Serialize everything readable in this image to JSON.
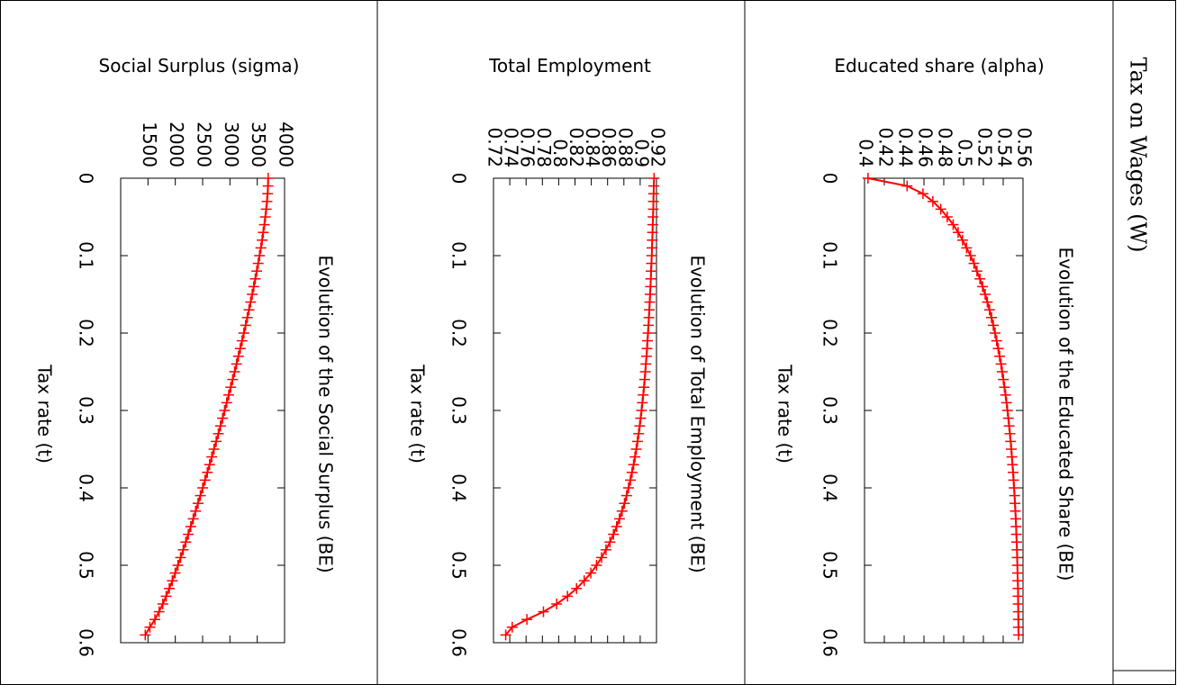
{
  "header": "Tax on Wages (W)",
  "chart_data": [
    {
      "type": "line",
      "column_label": "Educated share (alpha)",
      "title": "Evolution of the Educated Share (BE)",
      "xlabel": "Tax rate (t)",
      "ylabel": "",
      "xlim": [
        0,
        0.6
      ],
      "ylim": [
        0.4,
        0.56
      ],
      "xticks": [
        "0",
        "0.1",
        "0.2",
        "0.3",
        "0.4",
        "0.5",
        "0.6"
      ],
      "yticks": [
        "0.4",
        "0.42",
        "0.44",
        "0.46",
        "0.48",
        "0.5",
        "0.52",
        "0.54",
        "0.56"
      ],
      "color": "#ff0000",
      "marker": "plus",
      "x": [
        0,
        0.01,
        0.02,
        0.03,
        0.04,
        0.05,
        0.06,
        0.07,
        0.08,
        0.09,
        0.1,
        0.11,
        0.12,
        0.13,
        0.14,
        0.15,
        0.16,
        0.17,
        0.18,
        0.19,
        0.2,
        0.21,
        0.22,
        0.23,
        0.24,
        0.25,
        0.26,
        0.27,
        0.28,
        0.29,
        0.3,
        0.31,
        0.32,
        0.33,
        0.34,
        0.35,
        0.36,
        0.37,
        0.38,
        0.39,
        0.4,
        0.41,
        0.42,
        0.43,
        0.44,
        0.45,
        0.46,
        0.47,
        0.48,
        0.49,
        0.5,
        0.51,
        0.52,
        0.53,
        0.54,
        0.55,
        0.56,
        0.57,
        0.58,
        0.59
      ],
      "y": [
        0.4035,
        0.443,
        0.459,
        0.469,
        0.477,
        0.4835,
        0.4895,
        0.4945,
        0.499,
        0.503,
        0.507,
        0.5105,
        0.5135,
        0.5165,
        0.5192,
        0.5218,
        0.524,
        0.5262,
        0.5282,
        0.53,
        0.5318,
        0.5334,
        0.535,
        0.5364,
        0.5378,
        0.539,
        0.5402,
        0.5413,
        0.5424,
        0.5434,
        0.5443,
        0.5452,
        0.546,
        0.5468,
        0.5475,
        0.5482,
        0.5488,
        0.5494,
        0.55,
        0.5505,
        0.551,
        0.5515,
        0.5519,
        0.5523,
        0.5527,
        0.553,
        0.5533,
        0.5536,
        0.5539,
        0.5541,
        0.5543,
        0.5545,
        0.5547,
        0.5549,
        0.555,
        0.5551,
        0.5552,
        0.5553,
        0.5554,
        0.5555
      ]
    },
    {
      "type": "line",
      "column_label": "Total Employment",
      "title": "Evolution of Total Employment (BE)",
      "xlabel": "Tax rate (t)",
      "ylabel": "",
      "xlim": [
        0,
        0.6
      ],
      "ylim": [
        0.72,
        0.92
      ],
      "xticks": [
        "0",
        "0.1",
        "0.2",
        "0.3",
        "0.4",
        "0.5",
        "0.6"
      ],
      "yticks": [
        "0.72",
        "0.74",
        "0.76",
        "0.78",
        "0.8",
        "0.82",
        "0.84",
        "0.86",
        "0.88",
        "0.9",
        "0.92"
      ],
      "color": "#ff0000",
      "marker": "plus",
      "x": [
        0,
        0.01,
        0.02,
        0.03,
        0.04,
        0.05,
        0.06,
        0.07,
        0.08,
        0.09,
        0.1,
        0.11,
        0.12,
        0.13,
        0.14,
        0.15,
        0.16,
        0.17,
        0.18,
        0.19,
        0.2,
        0.21,
        0.22,
        0.23,
        0.24,
        0.25,
        0.26,
        0.27,
        0.28,
        0.29,
        0.3,
        0.31,
        0.32,
        0.33,
        0.34,
        0.35,
        0.36,
        0.37,
        0.38,
        0.39,
        0.4,
        0.41,
        0.42,
        0.43,
        0.44,
        0.45,
        0.46,
        0.47,
        0.48,
        0.49,
        0.5,
        0.51,
        0.52,
        0.53,
        0.54,
        0.55,
        0.56,
        0.57,
        0.58,
        0.59
      ],
      "y": [
        0.917,
        0.9167,
        0.9165,
        0.9162,
        0.916,
        0.9157,
        0.9154,
        0.9151,
        0.9148,
        0.9145,
        0.9142,
        0.9138,
        0.9134,
        0.913,
        0.9126,
        0.9122,
        0.9117,
        0.9112,
        0.9107,
        0.9102,
        0.9096,
        0.909,
        0.9084,
        0.9077,
        0.907,
        0.9063,
        0.9055,
        0.9046,
        0.9037,
        0.9027,
        0.9017,
        0.9006,
        0.8994,
        0.8981,
        0.8967,
        0.8952,
        0.8936,
        0.8919,
        0.89,
        0.888,
        0.8857,
        0.8833,
        0.8807,
        0.8778,
        0.8746,
        0.8711,
        0.8672,
        0.8629,
        0.858,
        0.8526,
        0.8464,
        0.8394,
        0.8313,
        0.8219,
        0.8108,
        0.7975,
        0.7813,
        0.761,
        0.743,
        0.735
      ]
    },
    {
      "type": "line",
      "column_label": "Social Surplus (sigma)",
      "title": "Evolution of the Social Surplus (BE)",
      "xlabel": "Tax rate (t)",
      "ylabel": "",
      "xlim": [
        0,
        0.6
      ],
      "ylim": [
        1000,
        4000
      ],
      "xticks": [
        "0",
        "0.1",
        "0.2",
        "0.3",
        "0.4",
        "0.5",
        "0.6"
      ],
      "yticks": [
        "1500",
        "2000",
        "2500",
        "3000",
        "3500",
        "4000"
      ],
      "color": "#ff0000",
      "marker": "plus",
      "x": [
        0,
        0.01,
        0.02,
        0.03,
        0.04,
        0.05,
        0.06,
        0.07,
        0.08,
        0.09,
        0.1,
        0.11,
        0.12,
        0.13,
        0.14,
        0.15,
        0.16,
        0.17,
        0.18,
        0.19,
        0.2,
        0.21,
        0.22,
        0.23,
        0.24,
        0.25,
        0.26,
        0.27,
        0.28,
        0.29,
        0.3,
        0.31,
        0.32,
        0.33,
        0.34,
        0.35,
        0.36,
        0.37,
        0.38,
        0.39,
        0.4,
        0.41,
        0.42,
        0.43,
        0.44,
        0.45,
        0.46,
        0.47,
        0.48,
        0.49,
        0.5,
        0.51,
        0.52,
        0.53,
        0.54,
        0.55,
        0.56,
        0.57,
        0.58,
        0.59
      ],
      "y": [
        3700,
        3697,
        3690,
        3678,
        3664,
        3648,
        3630,
        3610,
        3589,
        3566,
        3542,
        3517,
        3491,
        3464,
        3436,
        3408,
        3379,
        3349,
        3318,
        3287,
        3255,
        3222,
        3189,
        3155,
        3121,
        3086,
        3050,
        3014,
        2978,
        2941,
        2903,
        2865,
        2827,
        2788,
        2748,
        2708,
        2668,
        2627,
        2586,
        2544,
        2502,
        2459,
        2416,
        2372,
        2328,
        2283,
        2238,
        2192,
        2145,
        2097,
        2048,
        1997,
        1945,
        1890,
        1833,
        1771,
        1703,
        1627,
        1535,
        1450
      ]
    }
  ]
}
